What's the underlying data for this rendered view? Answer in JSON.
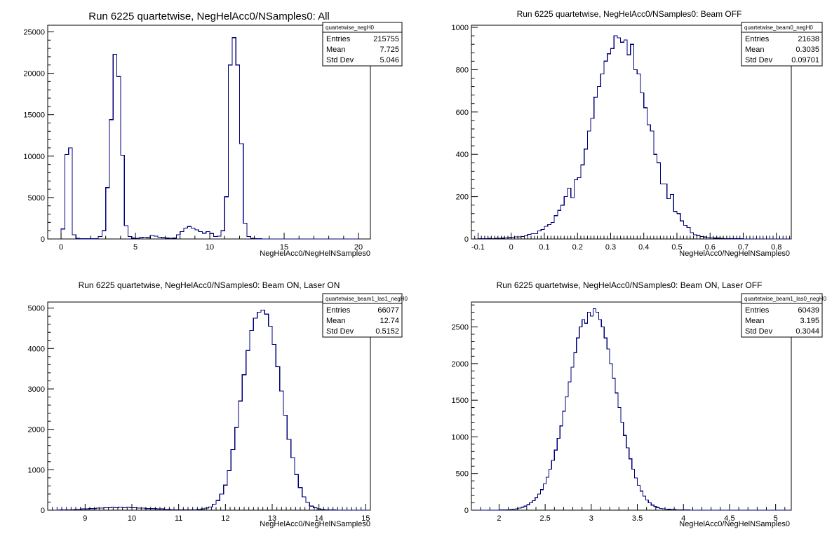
{
  "chart_data": [
    {
      "type": "bar",
      "histogram": "step",
      "title": "Run 6225 quartetwise, NegHelAcc0/NSamples0: All",
      "xlabel": "NegHelAcc0/NegHelNSamples0",
      "xlim": [
        -0.9,
        20.8
      ],
      "ylim": [
        0,
        25800
      ],
      "xticks": [
        0,
        5,
        10,
        15,
        20
      ],
      "yticks": [
        0,
        5000,
        10000,
        15000,
        20000,
        25000
      ],
      "line_color": "#00007a",
      "stats": {
        "name": "quartetwise_negH0",
        "rows": [
          [
            "Entries",
            "215755"
          ],
          [
            "Mean",
            "7.725"
          ],
          [
            "Std Dev",
            "5.046"
          ]
        ]
      },
      "bin_width": 0.25,
      "x_start": 0,
      "values": [
        1200,
        10200,
        11000,
        500,
        60,
        30,
        20,
        20,
        30,
        50,
        300,
        1000,
        6200,
        14400,
        22300,
        19600,
        10100,
        1600,
        300,
        100,
        80,
        150,
        200,
        150,
        420,
        350,
        200,
        150,
        100,
        80,
        100,
        500,
        900,
        1300,
        1500,
        1300,
        1100,
        900,
        700,
        900,
        650,
        300,
        350,
        1000,
        5100,
        21000,
        24300,
        21000,
        11500,
        1900,
        300,
        80,
        30,
        20,
        10,
        10,
        10,
        5,
        5,
        5,
        5,
        5,
        5,
        5,
        5,
        5,
        5,
        5,
        5,
        5,
        5,
        5,
        5,
        5,
        5,
        5,
        5,
        5,
        5,
        5
      ]
    },
    {
      "type": "bar",
      "histogram": "step",
      "title": "Run 6225 quartetwise, NegHelAcc0/NSamples0: Beam OFF",
      "xlabel": "NegHelAcc0/NegHelNSamples0",
      "xlim": [
        -0.12,
        0.845
      ],
      "ylim": [
        0,
        1010
      ],
      "xticks": [
        -0.1,
        0,
        0.1,
        0.2,
        0.3,
        0.4,
        0.5,
        0.6,
        0.7,
        0.8
      ],
      "yticks": [
        0,
        200,
        400,
        600,
        800,
        1000
      ],
      "line_color": "#00007a",
      "stats": {
        "name": "quartetwise_beam0_negH0",
        "rows": [
          [
            "Entries",
            "21638"
          ],
          [
            "Mean",
            "0.3035"
          ],
          [
            "Std Dev",
            "0.09701"
          ]
        ]
      },
      "bin_width": 0.01,
      "x_start": -0.12,
      "values": [
        0,
        0,
        2,
        1,
        2,
        3,
        2,
        3,
        3,
        4,
        5,
        6,
        8,
        10,
        10,
        12,
        15,
        22,
        25,
        25,
        38,
        45,
        60,
        68,
        78,
        110,
        135,
        160,
        200,
        240,
        195,
        280,
        290,
        350,
        425,
        510,
        570,
        670,
        720,
        780,
        840,
        875,
        900,
        960,
        950,
        930,
        940,
        870,
        920,
        800,
        780,
        690,
        620,
        540,
        510,
        400,
        360,
        260,
        260,
        190,
        210,
        130,
        120,
        85,
        65,
        55,
        30,
        20,
        16,
        12,
        9,
        7,
        5,
        4,
        4,
        3,
        2,
        2,
        1,
        1,
        1,
        1,
        0,
        0,
        0,
        0,
        0,
        0,
        0,
        0,
        0,
        0,
        0,
        0,
        0,
        0,
        0
      ]
    },
    {
      "type": "bar",
      "histogram": "step",
      "title": "Run 6225 quartetwise, NegHelAcc0/NSamples0: Beam ON, Laser ON",
      "xlabel": "NegHelAcc0/NegHelNSamples0",
      "xlim": [
        8.2,
        15.1
      ],
      "ylim": [
        0,
        5150
      ],
      "xticks": [
        9,
        10,
        11,
        12,
        13,
        14,
        15
      ],
      "yticks": [
        0,
        1000,
        2000,
        3000,
        4000,
        5000
      ],
      "line_color": "#00007a",
      "stats": {
        "name": "quartetwise_beam1_las1_negH0",
        "rows": [
          [
            "Entries",
            "66077"
          ],
          [
            "Mean",
            "12.74"
          ],
          [
            "Std Dev",
            "0.5152"
          ]
        ]
      },
      "bin_width": 0.08,
      "x_start": 8.2,
      "values": [
        0,
        0,
        0,
        5,
        5,
        10,
        10,
        20,
        20,
        30,
        30,
        40,
        40,
        50,
        50,
        60,
        60,
        70,
        60,
        70,
        60,
        70,
        60,
        60,
        50,
        50,
        40,
        40,
        40,
        30,
        30,
        20,
        20,
        10,
        10,
        10,
        10,
        10,
        10,
        5,
        20,
        30,
        50,
        80,
        150,
        240,
        400,
        620,
        980,
        1500,
        2050,
        2700,
        3350,
        3950,
        4450,
        4750,
        4900,
        4950,
        4850,
        4550,
        4100,
        3550,
        2950,
        2350,
        1750,
        1300,
        880,
        560,
        330,
        190,
        100,
        60,
        30,
        15,
        8,
        5,
        3,
        2,
        1,
        0,
        0,
        0,
        0,
        0,
        0,
        0
      ]
    },
    {
      "type": "bar",
      "histogram": "step",
      "title": "Run 6225 quartetwise, NegHelAcc0/NSamples0: Beam ON, Laser OFF",
      "xlabel": "NegHelAcc0/NegHelNSamples0",
      "xlim": [
        1.7,
        5.17
      ],
      "ylim": [
        0,
        2840
      ],
      "xticks": [
        2,
        2.5,
        3,
        3.5,
        4,
        4.5,
        5
      ],
      "yticks": [
        0,
        500,
        1000,
        1500,
        2000,
        2500
      ],
      "line_color": "#00007a",
      "stats": {
        "name": "quartetwise_beam1_las0_negH0",
        "rows": [
          [
            "Entries",
            "60439"
          ],
          [
            "Mean",
            "3.195"
          ],
          [
            "Std Dev",
            "0.3044"
          ]
        ]
      },
      "bin_width": 0.03,
      "x_start": 1.7,
      "values": [
        0,
        0,
        0,
        0,
        0,
        0,
        0,
        0,
        0,
        0,
        2,
        3,
        4,
        6,
        10,
        15,
        20,
        30,
        40,
        55,
        75,
        100,
        130,
        170,
        220,
        280,
        360,
        450,
        560,
        680,
        820,
        980,
        1150,
        1350,
        1550,
        1750,
        1950,
        2150,
        2350,
        2500,
        2600,
        2550,
        2700,
        2650,
        2750,
        2700,
        2600,
        2500,
        2350,
        2200,
        2000,
        1800,
        1600,
        1400,
        1200,
        1020,
        850,
        700,
        560,
        440,
        340,
        260,
        190,
        140,
        100,
        70,
        50,
        35,
        25,
        20,
        15,
        12,
        9,
        7,
        6,
        5,
        4,
        3,
        2,
        1,
        1,
        0,
        0,
        0,
        0,
        0,
        0,
        0,
        0,
        0,
        0,
        0,
        0,
        0,
        0,
        0,
        0,
        0,
        0,
        0,
        0,
        0,
        0,
        0,
        0,
        0,
        0,
        0,
        0,
        0,
        0,
        0,
        0,
        0,
        0
      ]
    }
  ]
}
